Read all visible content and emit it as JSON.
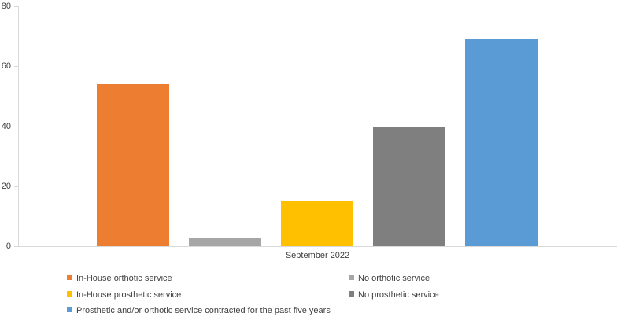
{
  "chart": {
    "axis_color": "#d9d9d9",
    "text_color": "#404040",
    "background_color": "#ffffff"
  },
  "chart_data": {
    "type": "bar",
    "title": "",
    "categories": [
      "September 2022"
    ],
    "series": [
      {
        "name": "In-House orthotic service",
        "values": [
          54
        ],
        "color": "#ED7D31"
      },
      {
        "name": "No orthotic service",
        "values": [
          3
        ],
        "color": "#A6A6A6"
      },
      {
        "name": "In-House prosthetic service",
        "values": [
          15
        ],
        "color": "#FFC000"
      },
      {
        "name": "No prosthetic service",
        "values": [
          40
        ],
        "color": "#7F7F7F"
      },
      {
        "name": "Prosthetic and/or orthotic service contracted for the past five years",
        "values": [
          69
        ],
        "color": "#5B9BD5"
      }
    ],
    "xlabel": "September 2022",
    "ylabel": "",
    "ylim": [
      0,
      80
    ],
    "y_tick_step": 20,
    "y_tick_labels": [
      "0",
      "20",
      "40",
      "60",
      "80"
    ],
    "grid": false,
    "legend_position": "bottom",
    "legend_columns": 2
  }
}
